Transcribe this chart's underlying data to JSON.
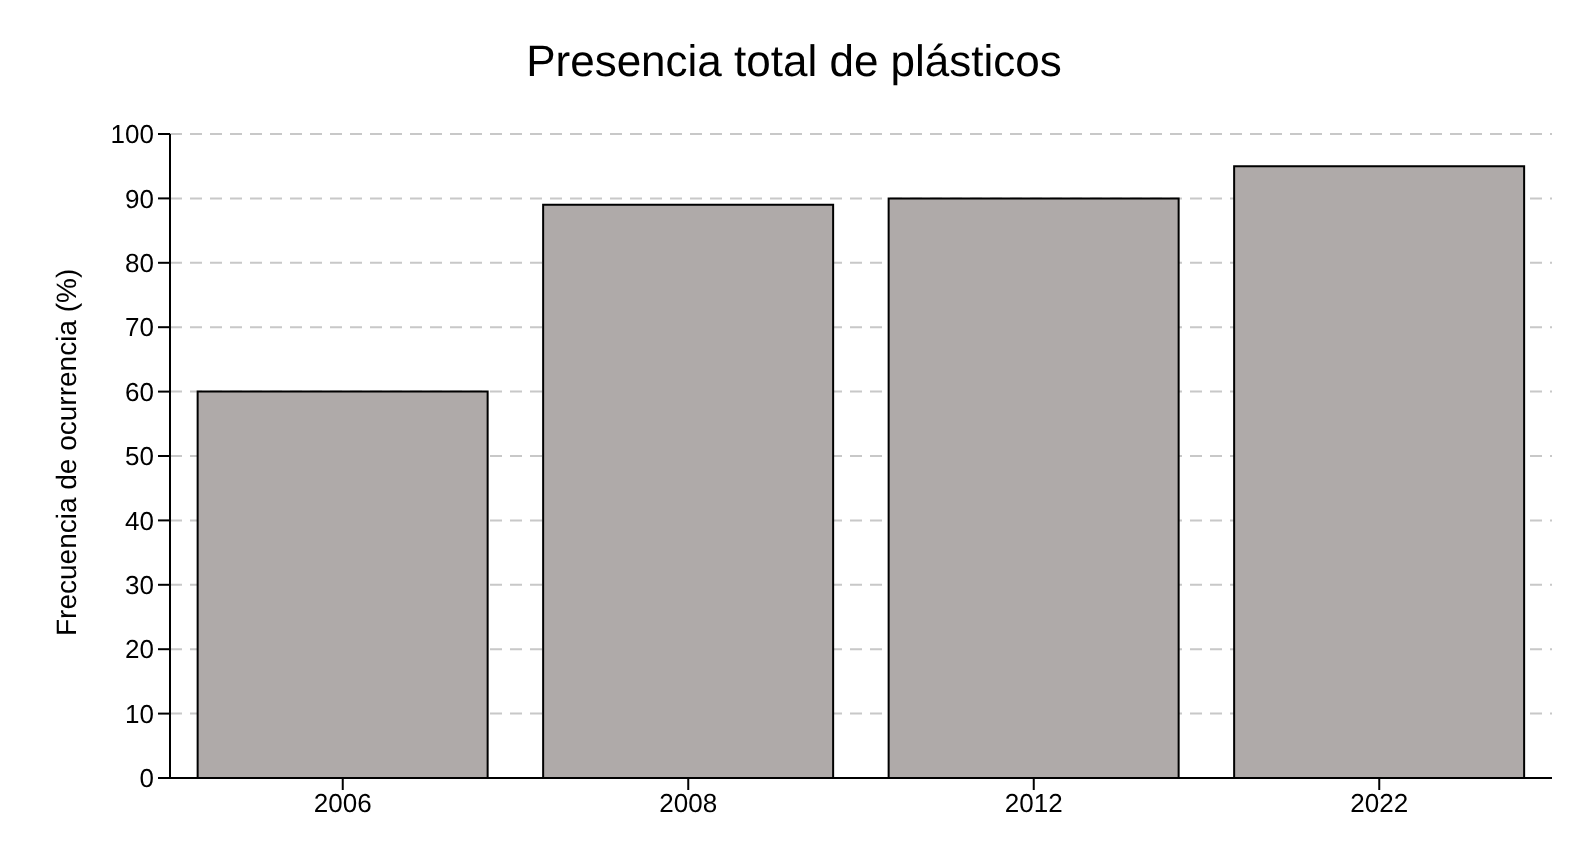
{
  "chart_data": {
    "type": "bar",
    "title": "Presencia total de plásticos",
    "ylabel": "Frecuencia de ocurrencia (%)",
    "categories": [
      "2006",
      "2008",
      "2012",
      "2022"
    ],
    "values": [
      60,
      89,
      90,
      95
    ],
    "color": "#afaaa9",
    "ylim": [
      0,
      100
    ],
    "yticks": [
      0,
      10,
      20,
      30,
      40,
      50,
      60,
      70,
      80,
      90,
      100
    ],
    "grid": "y"
  }
}
